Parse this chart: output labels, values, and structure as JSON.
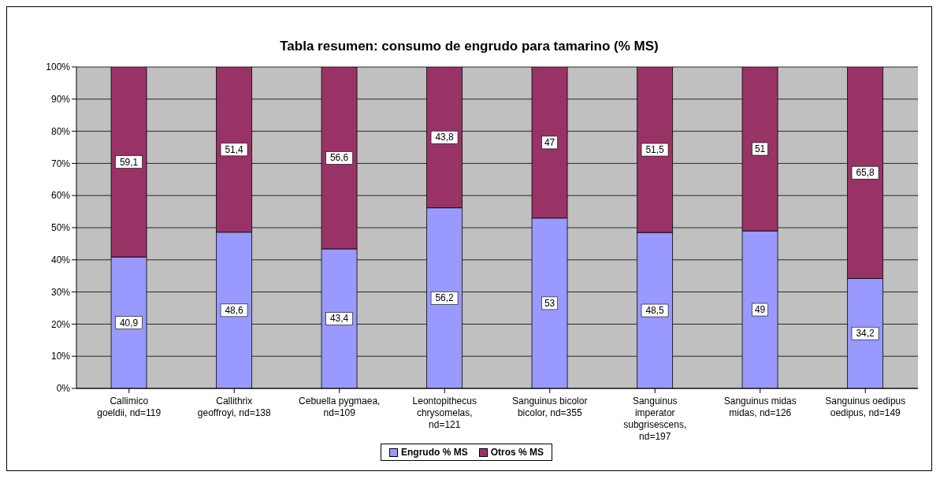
{
  "chart_data": {
    "type": "bar",
    "title": "Tabla resumen: consumo de engrudo para tamarino (% MS)",
    "stacked": true,
    "categories": [
      "Callimico goeldii, nd=119",
      "Callithrix geoffroyi, nd=138",
      "Cebuella pygmaea, nd=109",
      "Leontopithecus chrysomelas, nd=121",
      "Sanguinus bicolor bicolor, nd=355",
      "Sanguinus imperator subgrisescens, nd=197",
      "Sanguinus midas midas, nd=126",
      "Sanguinus oedipus oedipus, nd=149"
    ],
    "series": [
      {
        "name": "Engrudo % MS",
        "color": "#9999ff",
        "values": [
          40.9,
          48.6,
          43.4,
          56.2,
          53,
          48.5,
          49,
          34.2
        ],
        "value_labels": [
          "40,9",
          "48,6",
          "43,4",
          "56,2",
          "53",
          "48,5",
          "49",
          "34,2"
        ]
      },
      {
        "name": "Otros % MS",
        "color": "#993366",
        "values": [
          59.1,
          51.4,
          56.6,
          43.8,
          47,
          51.5,
          51,
          65.8
        ],
        "value_labels": [
          "59,1",
          "51,4",
          "56,6",
          "43,8",
          "47",
          "51,5",
          "51",
          "65,8"
        ]
      }
    ],
    "ylim": [
      0,
      100
    ],
    "yticks": [
      {
        "value": 0,
        "label": "0%"
      },
      {
        "value": 10,
        "label": "10%"
      },
      {
        "value": 20,
        "label": "20%"
      },
      {
        "value": 30,
        "label": "30%"
      },
      {
        "value": 40,
        "label": "40%"
      },
      {
        "value": 50,
        "label": "50%"
      },
      {
        "value": 60,
        "label": "60%"
      },
      {
        "value": 70,
        "label": "70%"
      },
      {
        "value": 80,
        "label": "80%"
      },
      {
        "value": 90,
        "label": "90%"
      },
      {
        "value": 100,
        "label": "100%"
      }
    ],
    "grid": "y",
    "legend": "bottom"
  }
}
